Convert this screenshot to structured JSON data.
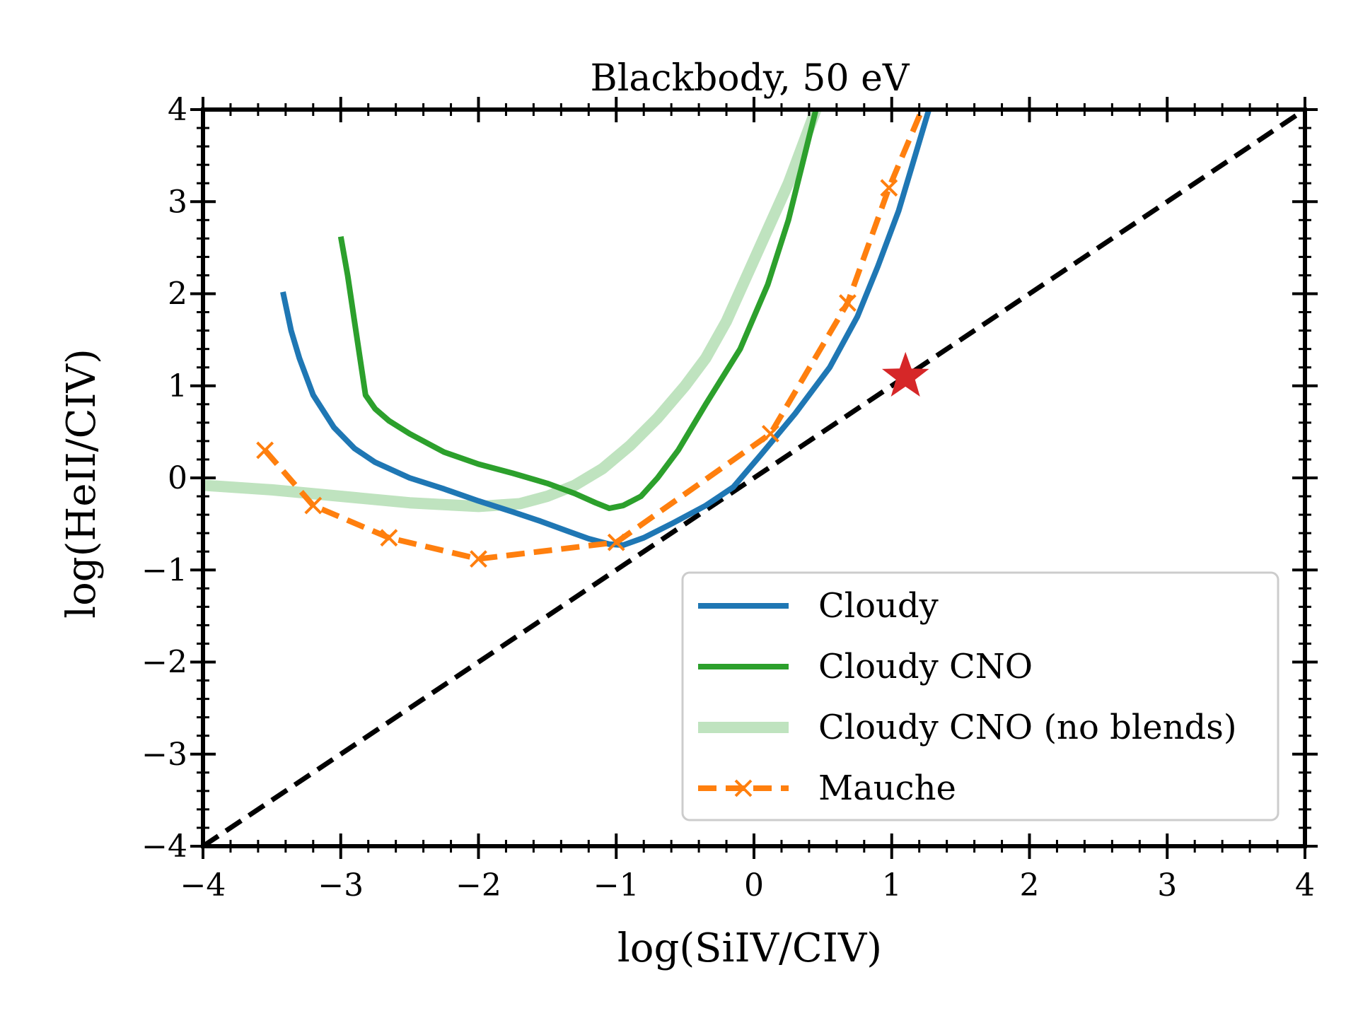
{
  "chart_data": {
    "type": "line",
    "title": "Blackbody, 50 eV",
    "xlabel": "log(SiIV/CIV)",
    "ylabel": "log(HeII/CIV)",
    "xlim": [
      -4,
      4
    ],
    "ylim": [
      -4,
      4
    ],
    "xticks": [
      -4,
      -3,
      -2,
      -1,
      0,
      1,
      2,
      3,
      4
    ],
    "yticks": [
      -4,
      -3,
      -2,
      -1,
      0,
      1,
      2,
      3,
      4
    ],
    "xtick_labels": [
      "−4",
      "−3",
      "−2",
      "−1",
      "0",
      "1",
      "2",
      "3",
      "4"
    ],
    "ytick_labels": [
      "−4",
      "−3",
      "−2",
      "−1",
      "0",
      "1",
      "2",
      "3",
      "4"
    ],
    "grid": false,
    "legend_position": "lower-right",
    "series": [
      {
        "name": "Cloudy",
        "color": "#1f77b4",
        "style": "solid",
        "points": [
          [
            -3.42,
            2.02
          ],
          [
            -3.36,
            1.6
          ],
          [
            -3.3,
            1.3
          ],
          [
            -3.2,
            0.9
          ],
          [
            -3.05,
            0.55
          ],
          [
            -2.9,
            0.32
          ],
          [
            -2.75,
            0.17
          ],
          [
            -2.5,
            0.0
          ],
          [
            -2.25,
            -0.12
          ],
          [
            -2.0,
            -0.25
          ],
          [
            -1.75,
            -0.37
          ],
          [
            -1.55,
            -0.47
          ],
          [
            -1.35,
            -0.58
          ],
          [
            -1.2,
            -0.66
          ],
          [
            -1.05,
            -0.72
          ],
          [
            -0.95,
            -0.73
          ],
          [
            -0.8,
            -0.65
          ],
          [
            -0.6,
            -0.5
          ],
          [
            -0.35,
            -0.3
          ],
          [
            -0.15,
            -0.1
          ],
          [
            0.05,
            0.25
          ],
          [
            0.3,
            0.7
          ],
          [
            0.55,
            1.2
          ],
          [
            0.75,
            1.75
          ],
          [
            0.9,
            2.3
          ],
          [
            1.05,
            2.9
          ],
          [
            1.15,
            3.4
          ],
          [
            1.27,
            4.0
          ]
        ]
      },
      {
        "name": "Cloudy CNO",
        "color": "#2ca02c",
        "style": "solid",
        "points": [
          [
            -3.0,
            2.62
          ],
          [
            -2.95,
            2.2
          ],
          [
            -2.9,
            1.7
          ],
          [
            -2.86,
            1.3
          ],
          [
            -2.82,
            0.9
          ],
          [
            -2.75,
            0.75
          ],
          [
            -2.65,
            0.62
          ],
          [
            -2.5,
            0.48
          ],
          [
            -2.25,
            0.28
          ],
          [
            -2.0,
            0.15
          ],
          [
            -1.75,
            0.05
          ],
          [
            -1.5,
            -0.06
          ],
          [
            -1.3,
            -0.17
          ],
          [
            -1.15,
            -0.27
          ],
          [
            -1.05,
            -0.33
          ],
          [
            -0.95,
            -0.3
          ],
          [
            -0.82,
            -0.2
          ],
          [
            -0.7,
            0.0
          ],
          [
            -0.55,
            0.3
          ],
          [
            -0.35,
            0.8
          ],
          [
            -0.1,
            1.4
          ],
          [
            0.1,
            2.1
          ],
          [
            0.25,
            2.8
          ],
          [
            0.35,
            3.4
          ],
          [
            0.45,
            4.0
          ]
        ]
      },
      {
        "name": "Cloudy CNO (no blends)",
        "color": "#bfe3bf",
        "style": "solid",
        "points": [
          [
            -4.0,
            -0.08
          ],
          [
            -3.5,
            -0.13
          ],
          [
            -3.0,
            -0.2
          ],
          [
            -2.5,
            -0.27
          ],
          [
            -2.0,
            -0.31
          ],
          [
            -1.7,
            -0.28
          ],
          [
            -1.5,
            -0.2
          ],
          [
            -1.3,
            -0.08
          ],
          [
            -1.1,
            0.1
          ],
          [
            -0.9,
            0.35
          ],
          [
            -0.7,
            0.65
          ],
          [
            -0.5,
            1.0
          ],
          [
            -0.35,
            1.3
          ],
          [
            -0.2,
            1.7
          ],
          [
            -0.05,
            2.2
          ],
          [
            0.1,
            2.7
          ],
          [
            0.25,
            3.2
          ],
          [
            0.4,
            3.8
          ],
          [
            0.45,
            4.0
          ]
        ]
      },
      {
        "name": "Mauche",
        "color": "#ff7f0e",
        "style": "dashed",
        "marker": "x",
        "points": [
          [
            -3.55,
            0.3
          ],
          [
            -3.2,
            -0.3
          ],
          [
            -2.65,
            -0.65
          ],
          [
            -2.0,
            -0.88
          ],
          [
            -1.0,
            -0.7
          ],
          [
            0.12,
            0.48
          ],
          [
            0.68,
            1.9
          ],
          [
            0.98,
            3.15
          ],
          [
            1.22,
            4.0
          ]
        ],
        "marker_points": [
          [
            -3.55,
            0.3
          ],
          [
            -3.2,
            -0.3
          ],
          [
            -2.65,
            -0.65
          ],
          [
            -2.0,
            -0.88
          ],
          [
            -1.0,
            -0.7
          ],
          [
            0.12,
            0.48
          ],
          [
            0.68,
            1.9
          ],
          [
            0.98,
            3.15
          ]
        ]
      }
    ],
    "reference_line": {
      "points": [
        [
          -4,
          -4
        ],
        [
          4,
          4
        ]
      ],
      "color": "#000000",
      "style": "dashed"
    },
    "star_marker": {
      "x": 1.1,
      "y": 1.1,
      "color": "#d62728"
    }
  }
}
